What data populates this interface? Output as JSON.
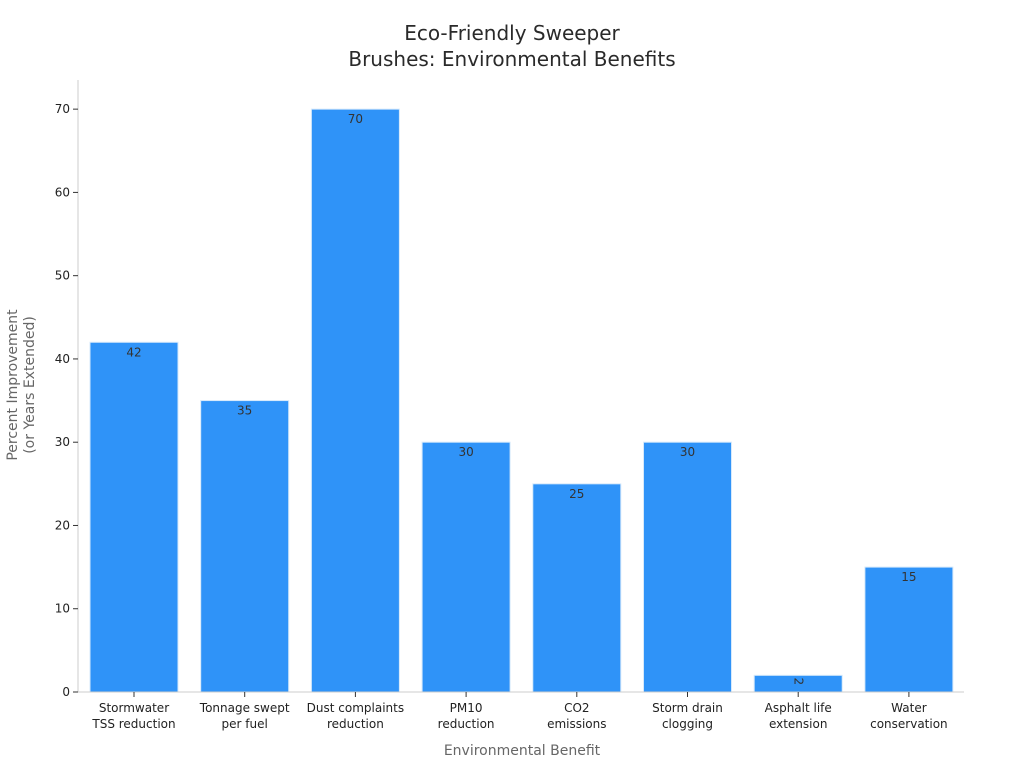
{
  "chart_data": {
    "type": "bar",
    "title_lines": [
      "Eco-Friendly Sweeper",
      "Brushes: Environmental Benefits"
    ],
    "xlabel": "Environmental Benefit",
    "ylabel_lines": [
      "Percent Improvement",
      "(or Years Extended)"
    ],
    "categories": [
      [
        "Stormwater",
        "TSS reduction"
      ],
      [
        "Tonnage swept",
        "per fuel"
      ],
      [
        "Dust complaints",
        "reduction"
      ],
      [
        "PM10",
        "reduction"
      ],
      [
        "CO2",
        "emissions"
      ],
      [
        "Storm drain",
        "clogging"
      ],
      [
        "Asphalt life",
        "extension"
      ],
      [
        "Water",
        "conservation"
      ]
    ],
    "values": [
      42,
      35,
      70,
      30,
      25,
      30,
      2,
      15
    ],
    "data_labels": [
      "42",
      "35",
      "70",
      "30",
      "25",
      "30",
      "2",
      "15"
    ],
    "yticks": [
      0,
      10,
      20,
      30,
      40,
      50,
      60,
      70
    ],
    "ylim": [
      0,
      73.5
    ],
    "grid": false,
    "legend": "none",
    "bar_color": "#2f93f8",
    "bar_edge_color": "#d6e9fb"
  }
}
